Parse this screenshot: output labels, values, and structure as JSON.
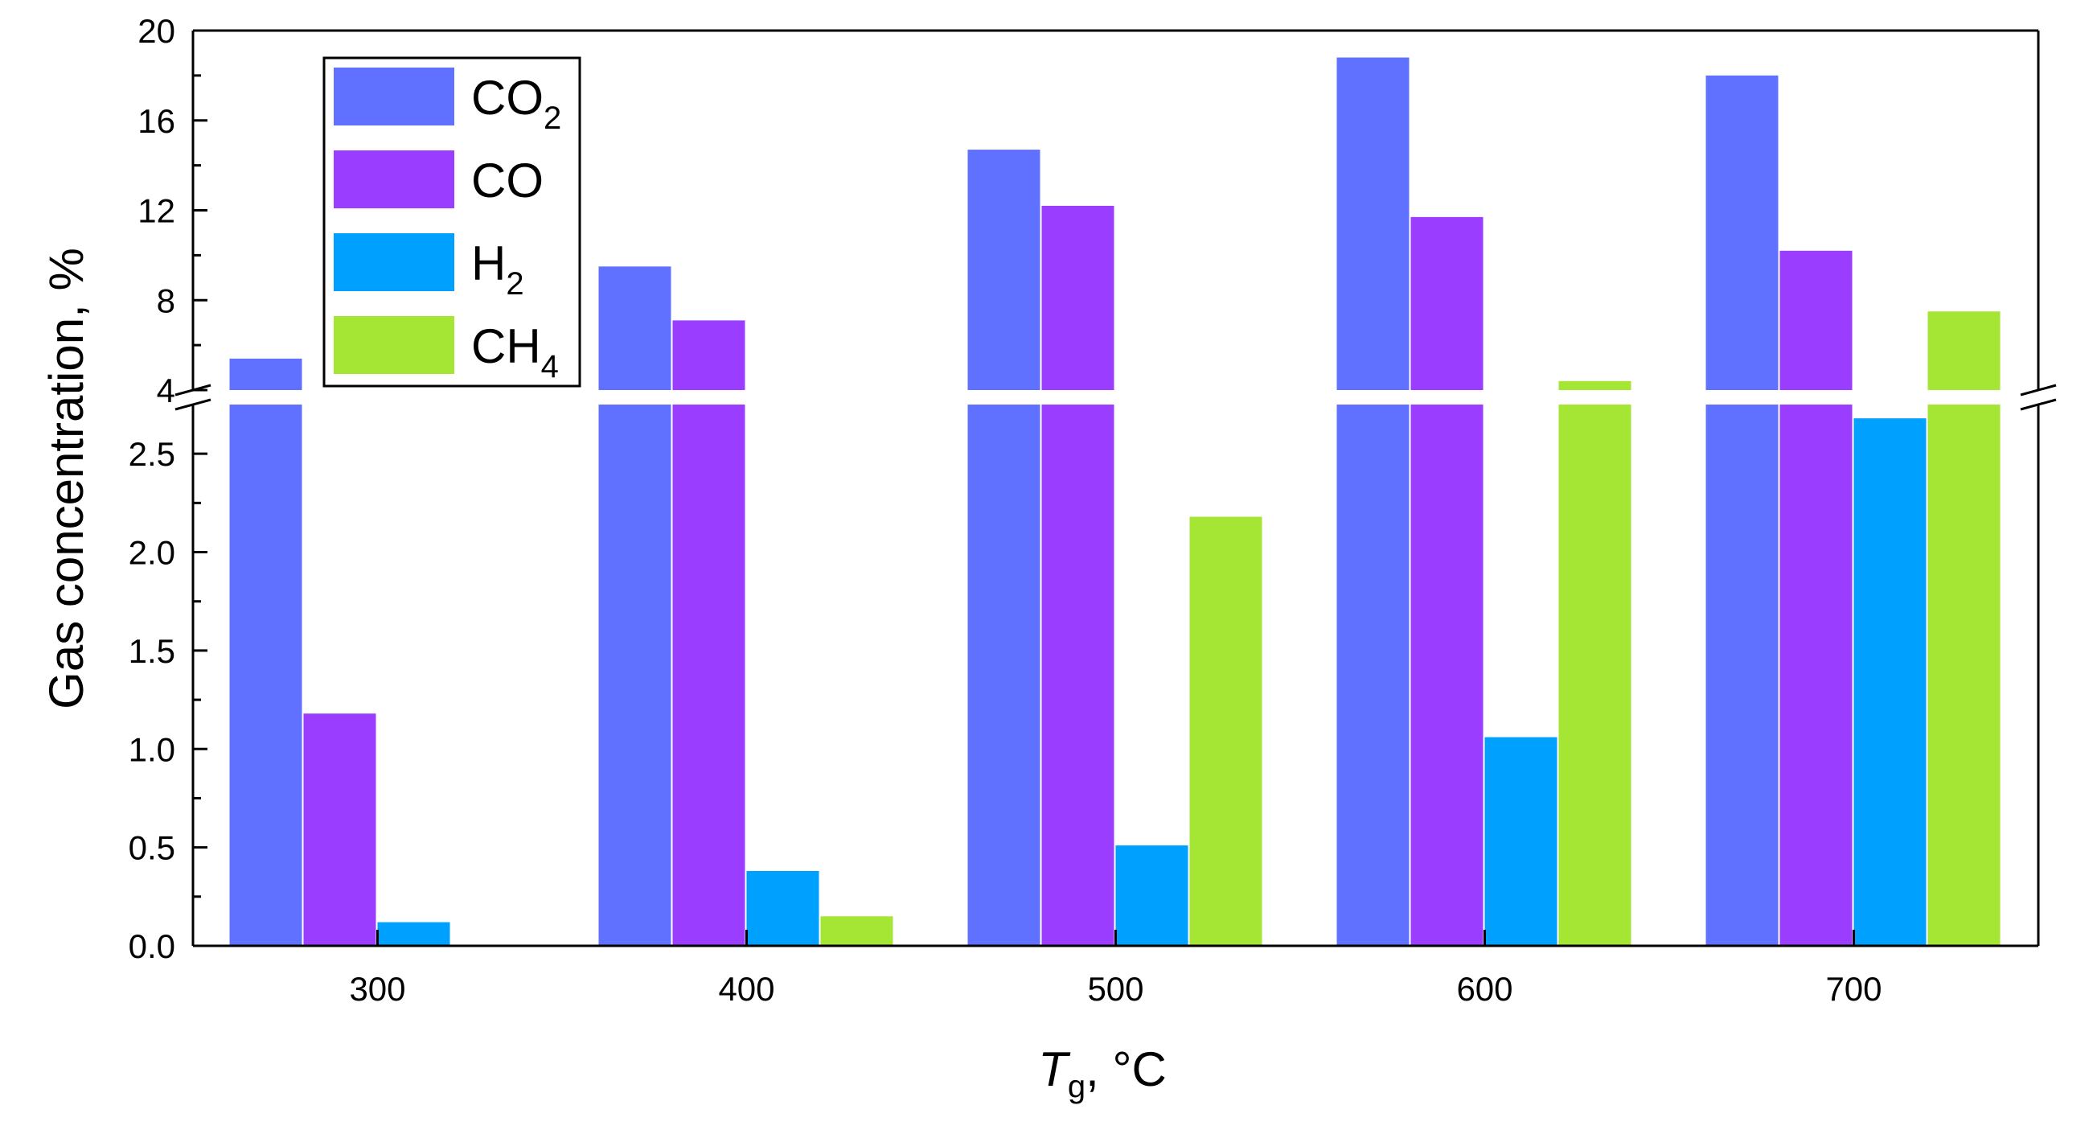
{
  "chart_data": {
    "type": "bar",
    "categories": [
      "300",
      "400",
      "500",
      "600",
      "700"
    ],
    "series": [
      {
        "name": "CO2",
        "label_main": "CO",
        "label_sub": "2",
        "color": "#6070ff",
        "values": [
          5.4,
          9.5,
          14.7,
          18.8,
          18.0
        ]
      },
      {
        "name": "CO",
        "label_main": "CO",
        "label_sub": "",
        "color": "#9b3dff",
        "values": [
          1.18,
          7.1,
          12.2,
          11.7,
          10.2
        ]
      },
      {
        "name": "H2",
        "label_main": "H",
        "label_sub": "2",
        "color": "#00a0ff",
        "values": [
          0.12,
          0.38,
          0.51,
          1.06,
          2.68
        ]
      },
      {
        "name": "CH4",
        "label_main": "CH",
        "label_sub": "4",
        "color": "#a5e634",
        "values": [
          0,
          0.15,
          2.18,
          4.4,
          7.5
        ]
      }
    ],
    "xlabel_main": "T",
    "xlabel_sub": "g",
    "xlabel_rest": ", °C",
    "ylabel": "Gas concentration, %",
    "ylim_lower": [
      0,
      2.75
    ],
    "ylim_upper": [
      4,
      20
    ],
    "yticks_lower": [
      "0.0",
      "0.5",
      "1.0",
      "1.5",
      "2.0",
      "2.5"
    ],
    "yticks_upper": [
      "4",
      "8",
      "12",
      "16",
      "20"
    ],
    "legend_position": "top-left"
  }
}
